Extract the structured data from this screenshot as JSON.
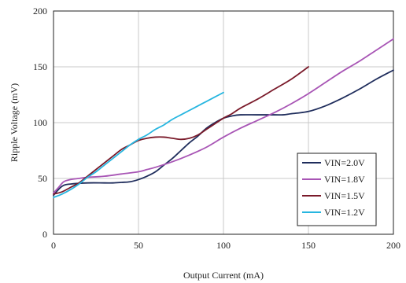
{
  "chart_data": {
    "type": "line",
    "title": "",
    "xlabel": "Output Current (mA)",
    "ylabel": "Ripple Voltage (mV)",
    "xlim": [
      0,
      200
    ],
    "ylim": [
      0,
      200
    ],
    "xticks": [
      0,
      50,
      100,
      150,
      200
    ],
    "yticks": [
      0,
      50,
      100,
      150,
      200
    ],
    "x_tick_labels": [
      "0",
      "50",
      "100",
      "150",
      "200"
    ],
    "y_tick_labels": [
      "0",
      "50",
      "100",
      "150",
      "200"
    ],
    "grid": true,
    "legend_position": "bottom-right",
    "series": [
      {
        "name": "VIN=2.0V",
        "color": "#1f2d5c",
        "points": [
          [
            0,
            35
          ],
          [
            5,
            43
          ],
          [
            10,
            45
          ],
          [
            20,
            46
          ],
          [
            30,
            46
          ],
          [
            35,
            46
          ],
          [
            40,
            46.5
          ],
          [
            45,
            47
          ],
          [
            50,
            49
          ],
          [
            55,
            52
          ],
          [
            60,
            56
          ],
          [
            65,
            62
          ],
          [
            70,
            68
          ],
          [
            75,
            75
          ],
          [
            80,
            82
          ],
          [
            85,
            88
          ],
          [
            90,
            95
          ],
          [
            95,
            100
          ],
          [
            100,
            104
          ],
          [
            105,
            106
          ],
          [
            110,
            107
          ],
          [
            120,
            107
          ],
          [
            130,
            107
          ],
          [
            135,
            107
          ],
          [
            140,
            108
          ],
          [
            150,
            110
          ],
          [
            160,
            115
          ],
          [
            170,
            122
          ],
          [
            180,
            130
          ],
          [
            190,
            139
          ],
          [
            200,
            147
          ]
        ]
      },
      {
        "name": "VIN=1.8V",
        "color": "#a855b5",
        "points": [
          [
            0,
            37
          ],
          [
            3,
            42
          ],
          [
            6,
            47
          ],
          [
            10,
            49
          ],
          [
            15,
            50
          ],
          [
            20,
            51
          ],
          [
            30,
            52
          ],
          [
            40,
            54
          ],
          [
            50,
            56
          ],
          [
            55,
            58
          ],
          [
            60,
            60
          ],
          [
            70,
            65
          ],
          [
            80,
            71
          ],
          [
            90,
            78
          ],
          [
            100,
            87
          ],
          [
            110,
            95
          ],
          [
            120,
            102
          ],
          [
            130,
            109
          ],
          [
            140,
            117
          ],
          [
            150,
            126
          ],
          [
            160,
            136
          ],
          [
            170,
            146
          ],
          [
            180,
            155
          ],
          [
            190,
            165
          ],
          [
            200,
            175
          ]
        ]
      },
      {
        "name": "VIN=1.5V",
        "color": "#7a1a2a",
        "points": [
          [
            0,
            36
          ],
          [
            5,
            38
          ],
          [
            10,
            42
          ],
          [
            15,
            46
          ],
          [
            20,
            52
          ],
          [
            25,
            58
          ],
          [
            30,
            64
          ],
          [
            35,
            70
          ],
          [
            40,
            76
          ],
          [
            45,
            80
          ],
          [
            50,
            84
          ],
          [
            55,
            86
          ],
          [
            60,
            87
          ],
          [
            65,
            87
          ],
          [
            70,
            86
          ],
          [
            75,
            85
          ],
          [
            80,
            86
          ],
          [
            85,
            89
          ],
          [
            90,
            94
          ],
          [
            95,
            99
          ],
          [
            100,
            104
          ],
          [
            105,
            108
          ],
          [
            110,
            113
          ],
          [
            120,
            121
          ],
          [
            130,
            130
          ],
          [
            140,
            139
          ],
          [
            150,
            150
          ]
        ]
      },
      {
        "name": "VIN=1.2V",
        "color": "#27b6e0",
        "points": [
          [
            0,
            33
          ],
          [
            5,
            36
          ],
          [
            10,
            40
          ],
          [
            15,
            45
          ],
          [
            20,
            51
          ],
          [
            25,
            56
          ],
          [
            30,
            62
          ],
          [
            35,
            68
          ],
          [
            40,
            74
          ],
          [
            45,
            80
          ],
          [
            50,
            85
          ],
          [
            55,
            89
          ],
          [
            60,
            94
          ],
          [
            65,
            98
          ],
          [
            70,
            103
          ],
          [
            75,
            107
          ],
          [
            80,
            111
          ],
          [
            85,
            115
          ],
          [
            90,
            119
          ],
          [
            95,
            123
          ],
          [
            100,
            127
          ]
        ]
      }
    ]
  }
}
